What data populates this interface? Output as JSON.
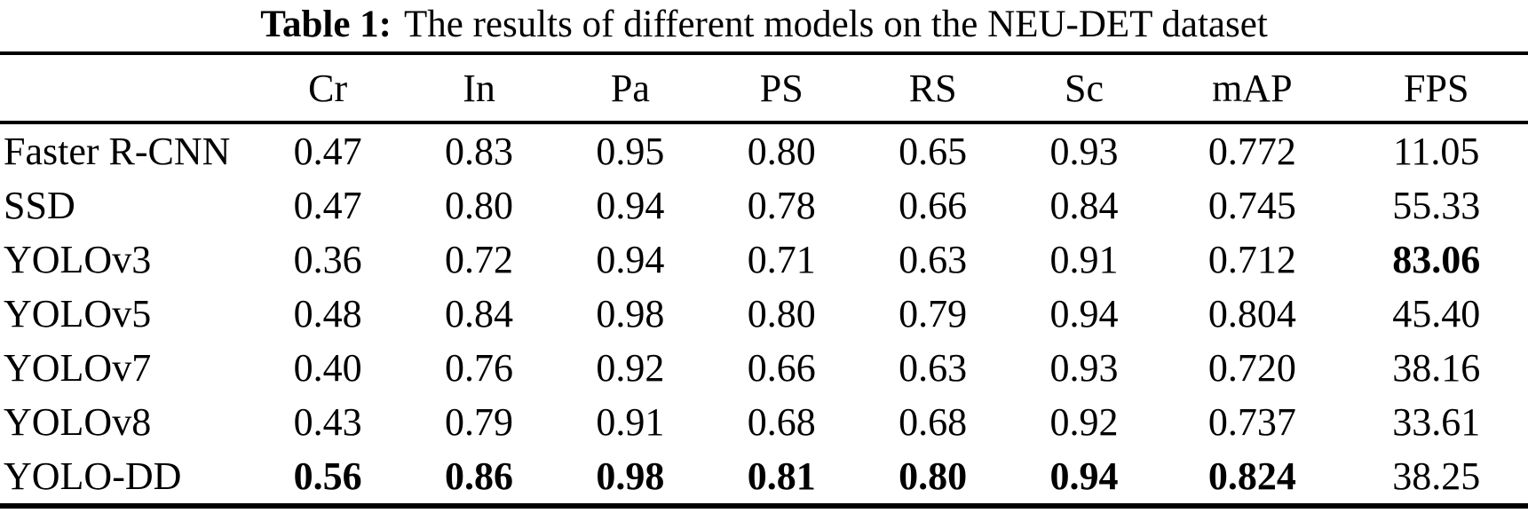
{
  "page": {
    "background_color": "#ffffff",
    "text_color": "#000000"
  },
  "table": {
    "title_label": "Table 1:",
    "title_text": "The results of different models on the NEU-DET dataset",
    "columns": [
      "",
      "Cr",
      "In",
      "Pa",
      "PS",
      "RS",
      "Sc",
      "mAP",
      "FPS"
    ],
    "rows": [
      {
        "model": "Faster R-CNN",
        "values": [
          "0.47",
          "0.83",
          "0.95",
          "0.80",
          "0.65",
          "0.93",
          "0.772",
          "11.05"
        ],
        "bold": [
          false,
          false,
          false,
          false,
          false,
          false,
          false,
          false
        ]
      },
      {
        "model": "SSD",
        "values": [
          "0.47",
          "0.80",
          "0.94",
          "0.78",
          "0.66",
          "0.84",
          "0.745",
          "55.33"
        ],
        "bold": [
          false,
          false,
          false,
          false,
          false,
          false,
          false,
          false
        ]
      },
      {
        "model": "YOLOv3",
        "values": [
          "0.36",
          "0.72",
          "0.94",
          "0.71",
          "0.63",
          "0.91",
          "0.712",
          "83.06"
        ],
        "bold": [
          false,
          false,
          false,
          false,
          false,
          false,
          false,
          true
        ]
      },
      {
        "model": "YOLOv5",
        "values": [
          "0.48",
          "0.84",
          "0.98",
          "0.80",
          "0.79",
          "0.94",
          "0.804",
          "45.40"
        ],
        "bold": [
          false,
          false,
          false,
          false,
          false,
          false,
          false,
          false
        ]
      },
      {
        "model": "YOLOv7",
        "values": [
          "0.40",
          "0.76",
          "0.92",
          "0.66",
          "0.63",
          "0.93",
          "0.720",
          "38.16"
        ],
        "bold": [
          false,
          false,
          false,
          false,
          false,
          false,
          false,
          false
        ]
      },
      {
        "model": "YOLOv8",
        "values": [
          "0.43",
          "0.79",
          "0.91",
          "0.68",
          "0.68",
          "0.92",
          "0.737",
          "33.61"
        ],
        "bold": [
          false,
          false,
          false,
          false,
          false,
          false,
          false,
          false
        ]
      },
      {
        "model": "YOLO-DD",
        "values": [
          "0.56",
          "0.86",
          "0.98",
          "0.81",
          "0.80",
          "0.94",
          "0.824",
          "38.25"
        ],
        "bold": [
          true,
          true,
          true,
          true,
          true,
          true,
          true,
          false
        ]
      }
    ]
  }
}
